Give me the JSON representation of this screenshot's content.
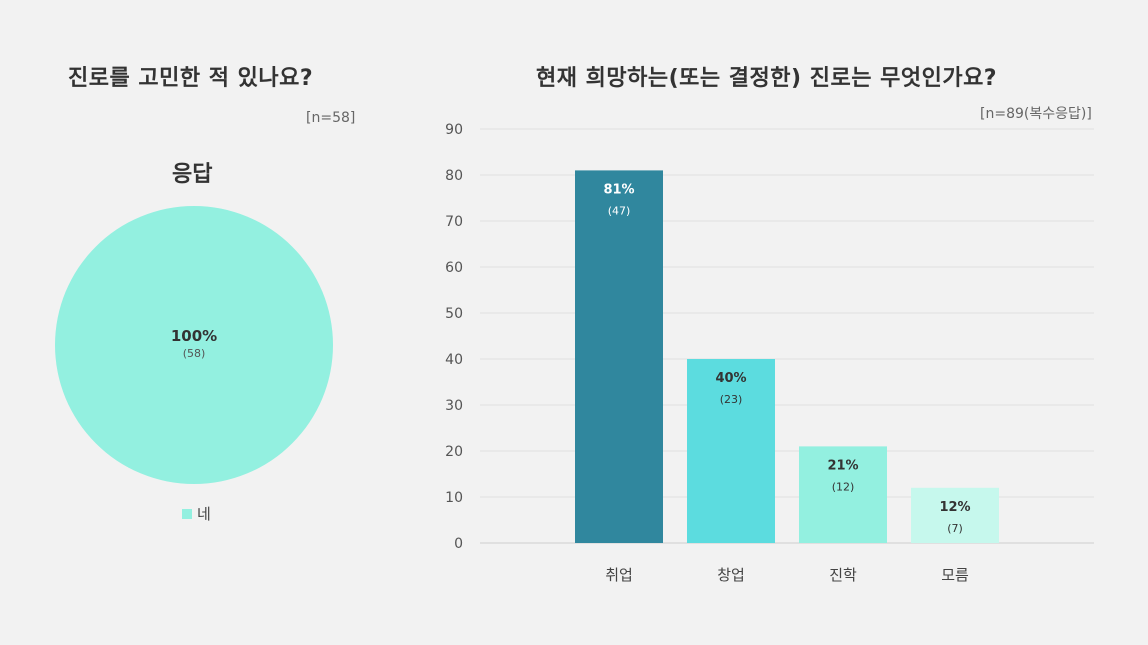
{
  "chart_data": [
    {
      "type": "pie",
      "title": "진로를 고민한 적 있나요?",
      "subtitle": "응답",
      "note": "[n=58]",
      "slices": [
        {
          "label": "네",
          "percent": "100%",
          "count": "(58)",
          "value": 58,
          "color": "#93f0e0"
        }
      ],
      "legend": [
        "네"
      ],
      "legend_position": "bottom"
    },
    {
      "type": "bar",
      "title": "현재 희망하는(또는 결정한) 진로는 무엇인가요?",
      "note": "[n=89(복수응답)]",
      "categories": [
        "취업",
        "창업",
        "진학",
        "모름"
      ],
      "values": [
        81,
        40,
        21,
        12
      ],
      "percent_labels": [
        "81%",
        "40%",
        "21%",
        "12%"
      ],
      "count_labels": [
        "(47)",
        "(23)",
        "(12)",
        "(7)"
      ],
      "colors": [
        "#30879e",
        "#5cdcdf",
        "#93f0e0",
        "#c6f8ed"
      ],
      "label_colors": [
        "#ffffff",
        "#333333",
        "#333333",
        "#333333"
      ],
      "ylim": [
        0,
        90
      ],
      "yticks": [
        "0",
        "10",
        "20",
        "30",
        "40",
        "50",
        "60",
        "70",
        "80",
        "90"
      ],
      "grid": true
    }
  ]
}
